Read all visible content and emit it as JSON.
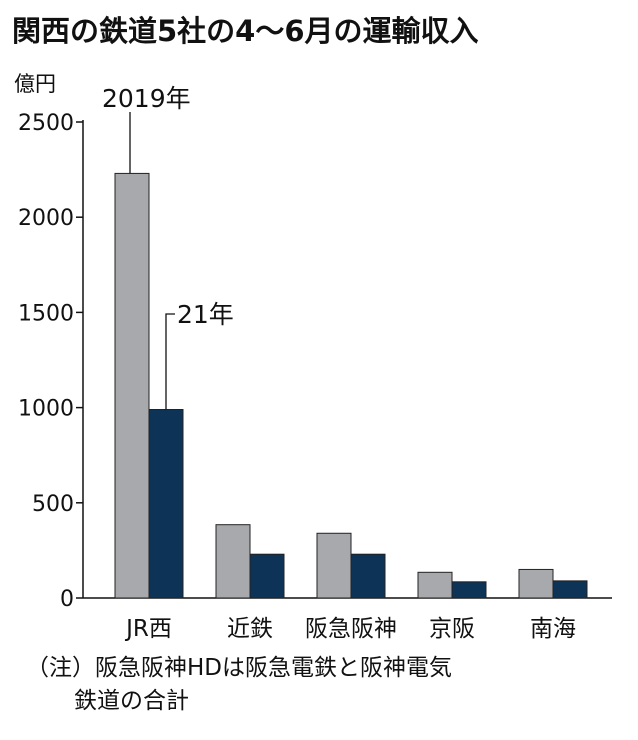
{
  "title": "関西の鉄道5社の4～6月の運輸収入",
  "unit_label": "億円",
  "note_line1": "（注）阪急阪神HDは阪急電鉄と阪神電気",
  "note_line2": "鉄道の合計",
  "colors": {
    "series_2019": "#a7a9ac",
    "series_2021": "#0d3356",
    "axis": "#111111"
  },
  "chart_data": {
    "type": "bar",
    "categories": [
      "JR西",
      "近鉄",
      "阪急阪神",
      "京阪",
      "南海"
    ],
    "series": [
      {
        "name": "2019年",
        "values": [
          2230,
          385,
          340,
          135,
          150
        ]
      },
      {
        "name": "21年",
        "values": [
          990,
          230,
          230,
          85,
          90
        ]
      }
    ],
    "yticks": [
      0,
      500,
      1000,
      1500,
      2000,
      2500
    ],
    "ylim": [
      0,
      2500
    ],
    "ylabel": "億円",
    "xlabel": "",
    "grid": false,
    "legend": "callout labels on first category"
  }
}
